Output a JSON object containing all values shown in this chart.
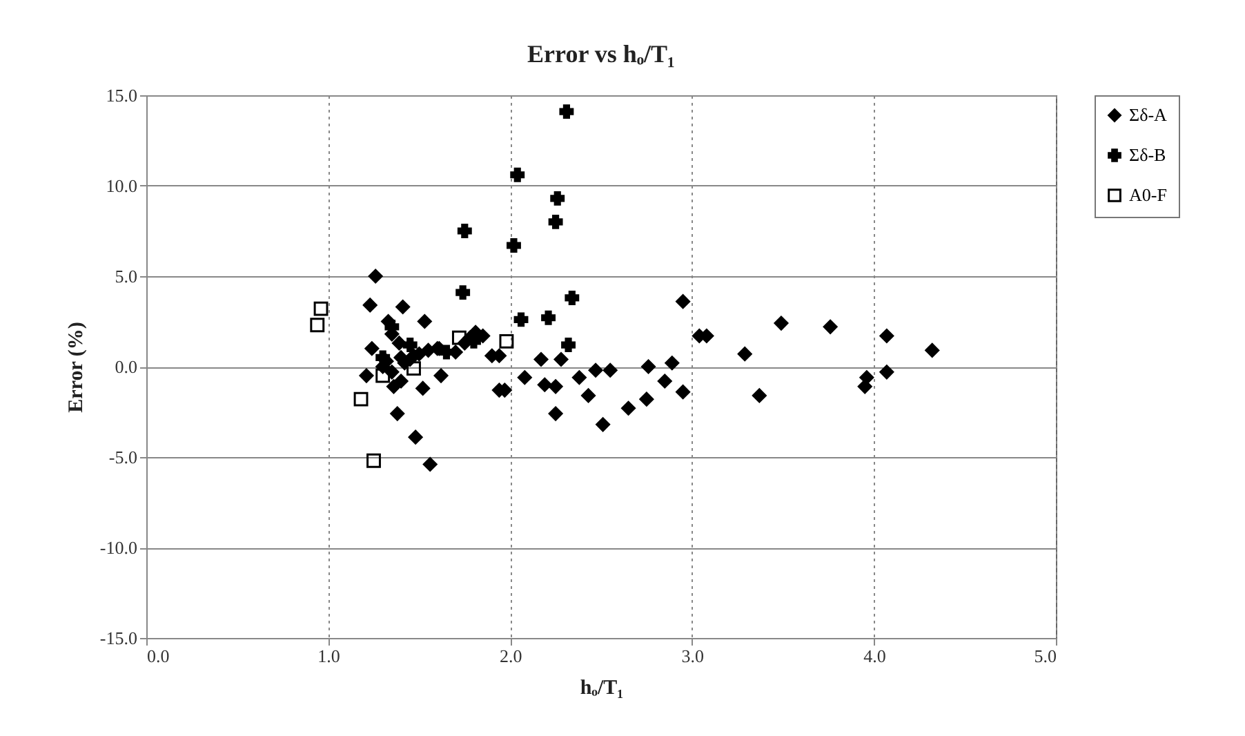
{
  "chart_data": {
    "type": "scatter",
    "title": "Error vs hₒ/T₁",
    "xlabel": "hₒ/T₁",
    "ylabel": "Error (%)",
    "xlim": [
      0,
      5
    ],
    "xticks": [
      {
        "value": 0,
        "label": "0.0"
      },
      {
        "value": 1,
        "label": "1.0"
      },
      {
        "value": 2,
        "label": "2.0"
      },
      {
        "value": 3,
        "label": "3.0"
      },
      {
        "value": 4,
        "label": "4.0"
      },
      {
        "value": 5,
        "label": "5.0"
      }
    ],
    "ylim": [
      -15,
      15
    ],
    "yticks": [
      {
        "value": -15,
        "label": "-15.0"
      },
      {
        "value": -10,
        "label": "-10.0"
      },
      {
        "value": -5,
        "label": "-5.0"
      },
      {
        "value": 0,
        "label": "0.0"
      },
      {
        "value": 5,
        "label": "5.0"
      },
      {
        "value": 10,
        "label": "10.0"
      },
      {
        "value": 15,
        "label": "15.0"
      }
    ],
    "grid": true,
    "legend": "right",
    "series": [
      {
        "name": "Σδ-A",
        "color": "#000000",
        "marker": "diamond",
        "x": [
          1.26,
          1.23,
          1.41,
          1.24,
          1.53,
          1.33,
          1.39,
          1.47,
          1.32,
          1.21,
          1.38,
          1.48,
          1.56,
          1.36,
          1.61,
          1.7,
          1.81,
          1.85,
          1.9,
          1.94,
          1.94,
          2.08,
          2.17,
          2.28,
          2.19,
          2.25,
          2.25,
          2.38,
          2.43,
          2.47,
          2.55,
          2.51,
          2.65,
          2.75,
          2.76,
          2.85,
          2.89,
          2.95,
          2.95,
          3.04,
          3.08,
          3.29,
          3.37,
          3.49,
          3.76,
          3.95,
          3.96,
          4.07,
          4.07,
          4.32,
          1.3,
          1.35,
          1.4,
          1.42,
          1.45,
          1.5,
          1.55,
          1.6,
          1.35,
          1.4,
          1.62,
          1.52,
          1.75,
          1.78,
          1.97
        ],
        "values": [
          5.0,
          3.4,
          3.3,
          1.0,
          2.5,
          2.5,
          1.3,
          0.6,
          0.3,
          -0.5,
          -2.6,
          -3.9,
          -5.4,
          -1.1,
          1.0,
          0.8,
          1.9,
          1.7,
          0.6,
          0.6,
          -1.3,
          -0.6,
          0.4,
          0.4,
          -1.0,
          -1.1,
          -2.6,
          -0.6,
          -1.6,
          -0.2,
          -0.2,
          -3.2,
          -2.3,
          -1.8,
          0.0,
          -0.8,
          0.2,
          -1.4,
          3.6,
          1.7,
          1.7,
          0.7,
          -1.6,
          2.4,
          2.2,
          -1.1,
          -0.6,
          -0.3,
          1.7,
          0.9,
          0.0,
          -0.3,
          0.5,
          0.2,
          0.4,
          0.7,
          0.9,
          1.0,
          1.8,
          -0.8,
          -0.5,
          -1.2,
          1.3,
          1.6,
          -1.3
        ]
      },
      {
        "name": "Σδ-B",
        "color": "#000000",
        "marker": "cross",
        "x": [
          2.31,
          2.04,
          2.02,
          1.75,
          1.74,
          2.26,
          2.25,
          2.34,
          2.06,
          2.21,
          2.32,
          1.35,
          1.3,
          1.65,
          1.45,
          1.8
        ],
        "values": [
          14.1,
          10.6,
          6.7,
          7.5,
          4.1,
          9.3,
          8.0,
          3.8,
          2.6,
          2.7,
          1.2,
          2.2,
          0.5,
          0.8,
          1.2,
          1.4
        ]
      },
      {
        "name": "A0-F",
        "color": "#000000",
        "marker": "square",
        "x": [
          0.96,
          0.94,
          1.18,
          1.25,
          1.98,
          1.72,
          1.47,
          1.3
        ],
        "values": [
          3.2,
          2.3,
          -1.8,
          -5.2,
          1.4,
          1.6,
          -0.1,
          -0.5
        ]
      }
    ]
  }
}
